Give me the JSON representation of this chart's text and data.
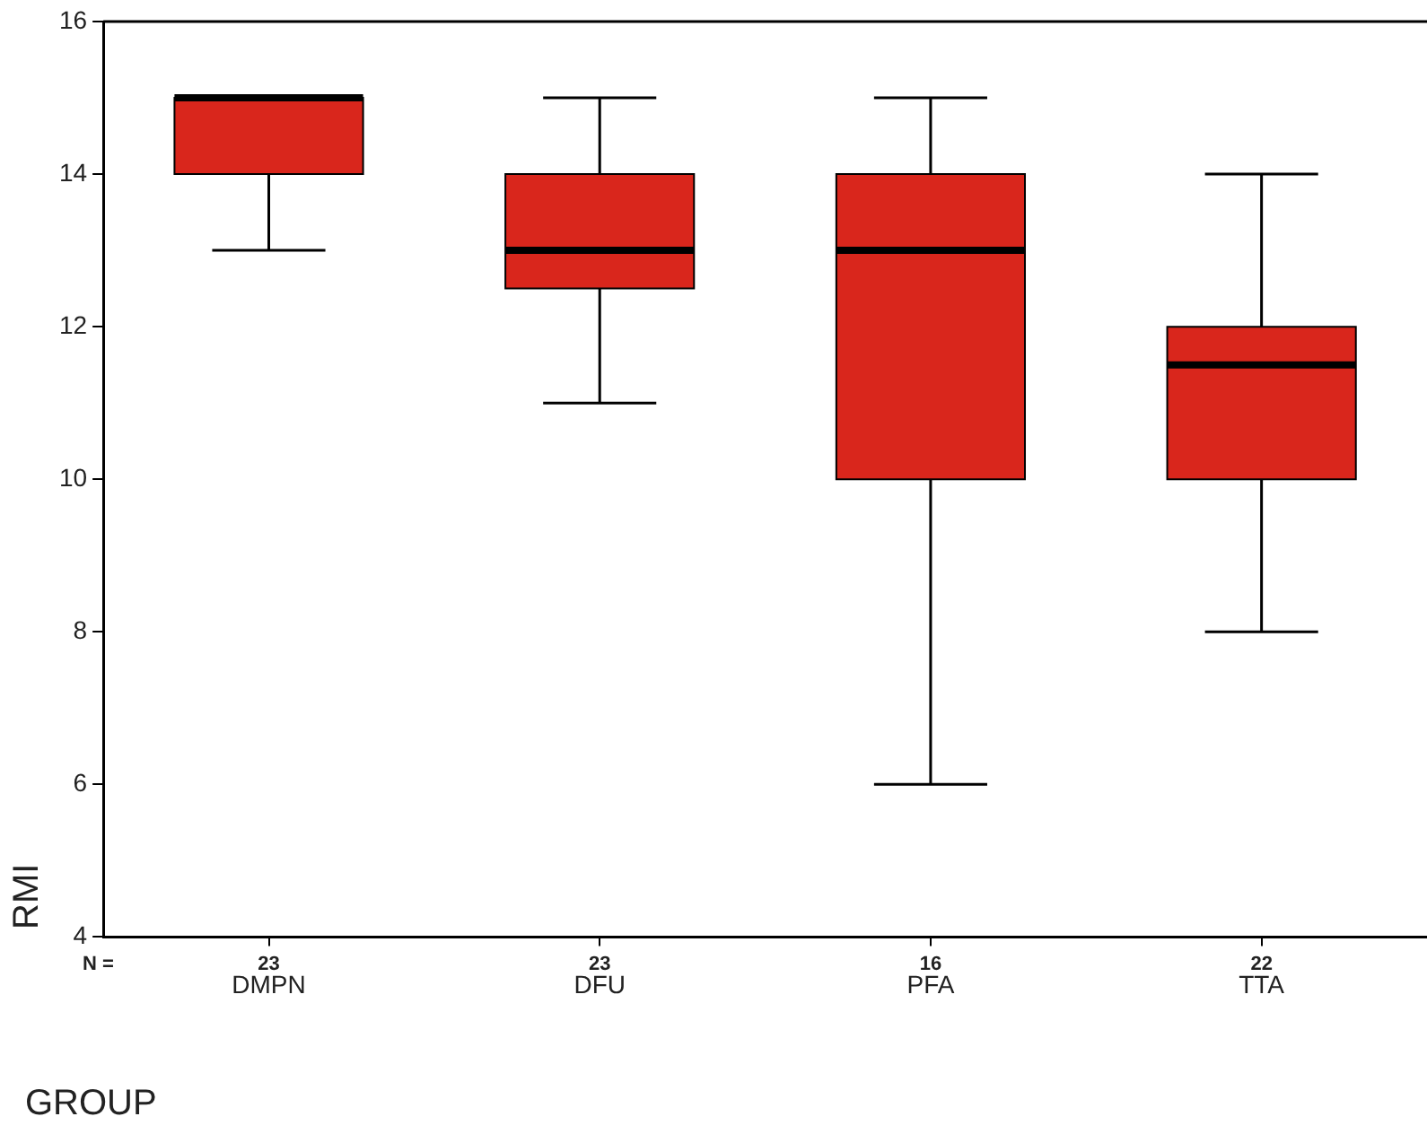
{
  "chart_data": {
    "type": "box",
    "xlabel": "GROUP",
    "ylabel": "RMI",
    "categories": [
      "DMPN",
      "DFU",
      "PFA",
      "TTA"
    ],
    "boxes": [
      {
        "low": 13,
        "q1": 14,
        "median": 15,
        "q3": 15,
        "high": 15
      },
      {
        "low": 11,
        "q1": 12.5,
        "median": 13,
        "q3": 14,
        "high": 15
      },
      {
        "low": 6,
        "q1": 10,
        "median": 13,
        "q3": 14,
        "high": 15
      },
      {
        "low": 8,
        "q1": 10,
        "median": 11.5,
        "q3": 12,
        "high": 14
      }
    ],
    "color": "#d9261c",
    "ylim": [
      4,
      16
    ],
    "yticks": [
      4,
      6,
      8,
      10,
      12,
      14,
      16
    ],
    "annotations": [
      "N =",
      "23",
      "23",
      "16",
      "22"
    ]
  }
}
